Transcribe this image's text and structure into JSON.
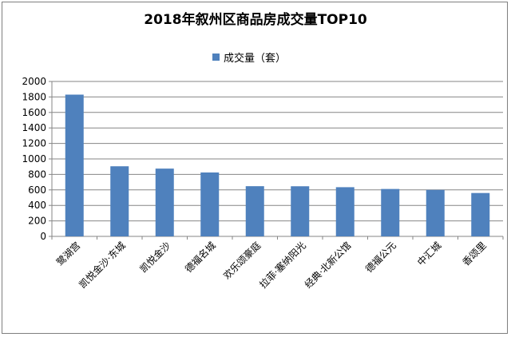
{
  "chart_data": {
    "type": "bar",
    "title": "2018年叙州区商品房成交量TOP10",
    "xlabel": "",
    "ylabel": "",
    "ylim": [
      0,
      2000
    ],
    "yticks": [
      0,
      200,
      400,
      600,
      800,
      1000,
      1200,
      1400,
      1600,
      1800,
      2000
    ],
    "grid": true,
    "legend_position": "top",
    "categories": [
      "鹭湖宫",
      "凯悦金沙·东城",
      "凯悦金沙",
      "德福名城",
      "欢乐颂豪庭",
      "拉菲·塞纳阳光",
      "经典·北新公馆",
      "德福公元",
      "中汇城",
      "香颂里"
    ],
    "series": [
      {
        "name": "成交量（套）",
        "values": [
          1830,
          905,
          875,
          825,
          648,
          647,
          635,
          612,
          600,
          560
        ]
      }
    ]
  },
  "colors": {
    "bar": "#4f81bd",
    "grid": "#868686",
    "axis": "#868686",
    "text": "#000000"
  }
}
